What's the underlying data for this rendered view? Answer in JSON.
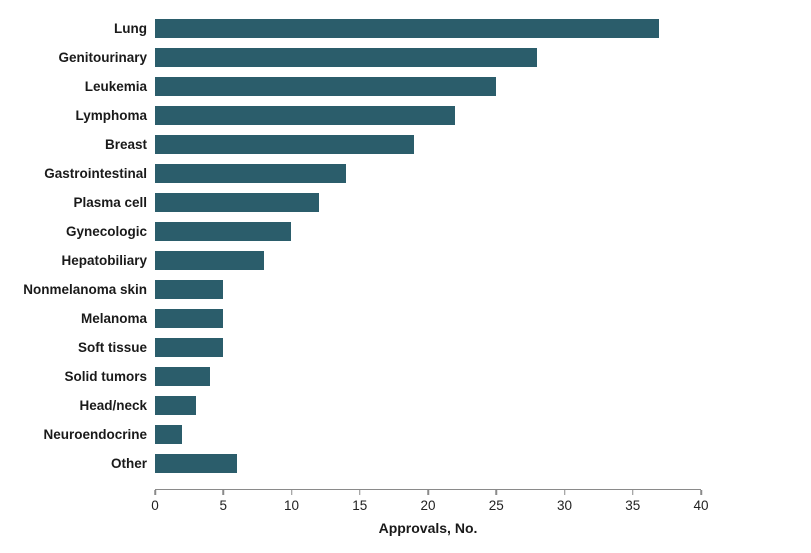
{
  "chart_data": {
    "type": "bar",
    "orientation": "horizontal",
    "categories": [
      "Lung",
      "Genitourinary",
      "Leukemia",
      "Lymphoma",
      "Breast",
      "Gastrointestinal",
      "Plasma cell",
      "Gynecologic",
      "Hepatobiliary",
      "Nonmelanoma skin",
      "Melanoma",
      "Soft tissue",
      "Solid tumors",
      "Head/neck",
      "Neuroendocrine",
      "Other"
    ],
    "values": [
      37,
      28,
      25,
      22,
      19,
      14,
      12,
      10,
      8,
      5,
      5,
      5,
      4,
      3,
      2,
      6
    ],
    "title": "",
    "xlabel": "Approvals, No.",
    "ylabel": "",
    "xlim": [
      0,
      40
    ],
    "xticks": [
      0,
      5,
      10,
      15,
      20,
      25,
      30,
      35,
      40
    ],
    "grid": false,
    "legend_position": "none"
  },
  "colors": {
    "bar": "#2b5d6b",
    "axis": "#8a8a8a",
    "text": "#1a1a1a"
  }
}
